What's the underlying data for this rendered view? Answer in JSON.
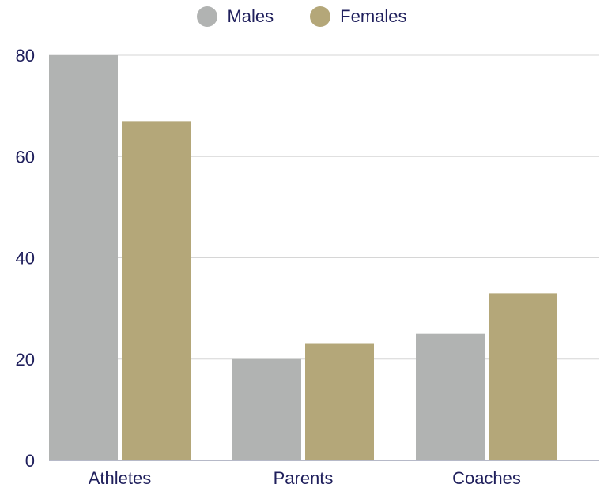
{
  "chart_data": {
    "type": "bar",
    "categories": [
      "Athletes",
      "Parents",
      "Coaches"
    ],
    "series": [
      {
        "name": "Males",
        "color": "#b1b3b2",
        "values": [
          80,
          20,
          25
        ]
      },
      {
        "name": "Females",
        "color": "#b4a779",
        "values": [
          67,
          23,
          33
        ]
      }
    ],
    "ylim": [
      0,
      80
    ],
    "yticks": [
      "0",
      "20",
      "40",
      "60",
      "80"
    ],
    "grid": true,
    "legend_position": "top-center"
  }
}
